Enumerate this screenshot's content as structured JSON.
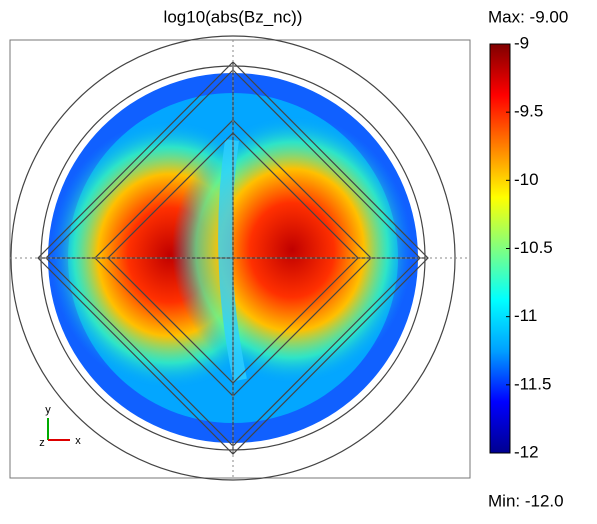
{
  "chart_data": {
    "type": "heatmap",
    "title": "log10(abs(Bz_nc))",
    "colorbar": {
      "lim": [
        -12,
        -9
      ],
      "ticks": [
        -9,
        -9.5,
        -10,
        -10.5,
        -11,
        -11.5,
        -12
      ],
      "max": {
        "value": -9,
        "label": "Max: -9.00"
      },
      "min": {
        "value": -12,
        "label": "Min: -12.0"
      },
      "colormap": [
        "#00008f",
        "#0000ff",
        "#00a0ff",
        "#00ffff",
        "#80ff80",
        "#ffff00",
        "#ff8000",
        "#ff0000",
        "#800000"
      ]
    },
    "axes_triad": {
      "y": "y",
      "z": "z",
      "x": "x"
    }
  }
}
